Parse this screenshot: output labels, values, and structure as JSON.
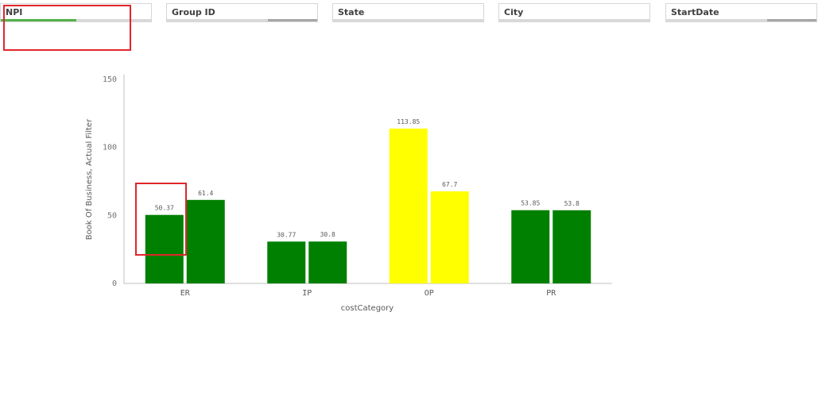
{
  "filters": [
    {
      "label": "NPI",
      "selected_fraction": 0.5,
      "accent": "#52b34a",
      "alt_fraction": 0
    },
    {
      "label": "Group ID",
      "selected_fraction": 0,
      "accent": "#52b34a",
      "alt_fraction": 0.33
    },
    {
      "label": "State",
      "selected_fraction": 0,
      "accent": "#52b34a",
      "alt_fraction": 0
    },
    {
      "label": "City",
      "selected_fraction": 0,
      "accent": "#52b34a",
      "alt_fraction": 0
    },
    {
      "label": "StartDate",
      "selected_fraction": 0,
      "accent": "#52b34a",
      "alt_fraction": 0.33
    }
  ],
  "chart_data": {
    "type": "bar",
    "title": "",
    "xlabel": "costCategory",
    "ylabel": "Book Of Business, Actual Filter",
    "ylim": [
      0,
      150
    ],
    "yticks": [
      "0",
      "50",
      "100",
      "150"
    ],
    "categories": [
      "ER",
      "IP",
      "OP",
      "PR"
    ],
    "series": [
      {
        "values": [
          50.37,
          30.77,
          113.85,
          53.85
        ],
        "labels": [
          "50.37",
          "30.77",
          "113.85",
          "53.85"
        ]
      },
      {
        "values": [
          61.4,
          30.8,
          67.7,
          53.8
        ],
        "labels": [
          "61.4",
          "30.8",
          "67.7",
          "53.8"
        ]
      }
    ],
    "category_colors": [
      "#008000",
      "#008000",
      "#ffff00",
      "#008000"
    ],
    "grid": false,
    "legend": "none"
  }
}
